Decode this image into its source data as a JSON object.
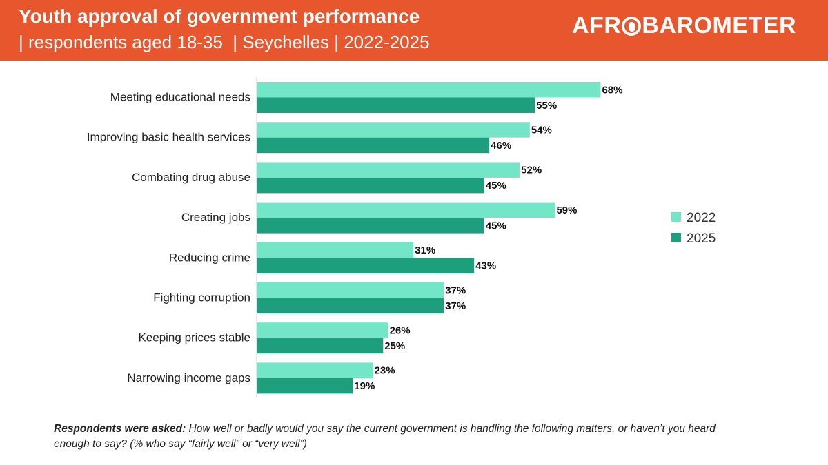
{
  "header": {
    "title": "Youth approval of government performance",
    "subtitle": "| respondents aged 18-35  | Seychelles | 2022-2025",
    "logo_text": "AFROBAROMETER",
    "background_color": "#e8562e"
  },
  "chart_data": {
    "type": "bar",
    "orientation": "horizontal",
    "categories": [
      "Meeting educational needs",
      "Improving basic health services",
      "Combating drug abuse",
      "Creating jobs",
      "Reducing crime",
      "Fighting corruption",
      "Keeping prices stable",
      "Narrowing income gaps"
    ],
    "series": [
      {
        "name": "2022",
        "color": "#74e6c8",
        "values": [
          68,
          54,
          52,
          59,
          31,
          37,
          26,
          23
        ]
      },
      {
        "name": "2025",
        "color": "#1d9e7d",
        "values": [
          55,
          46,
          45,
          45,
          43,
          37,
          25,
          19
        ]
      }
    ],
    "value_suffix": "%",
    "xlim": [
      0,
      100
    ],
    "grid": false,
    "legend_position": "right"
  },
  "footnote": {
    "lead": "Respondents were asked:",
    "text": " How well or badly would you say the current government is handling the following matters, or haven’t you heard enough to say? (% who say “fairly well” or “very well”)"
  }
}
